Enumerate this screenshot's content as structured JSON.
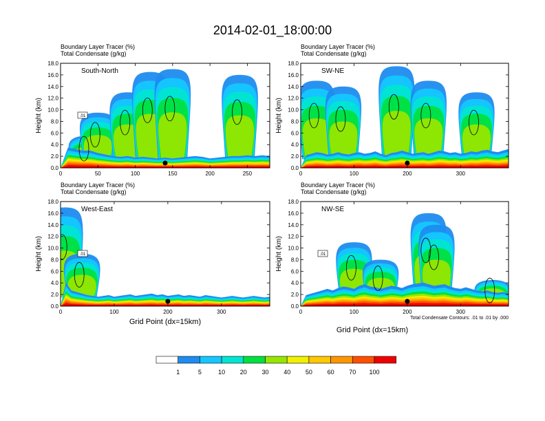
{
  "title": "2014-02-01_18:00:00",
  "field_label_1": "Boundary Layer Tracer   (%)",
  "field_label_2": "Total Condensate   (g/kg)",
  "contour_note": "Total Condensate Contours: .01 to .01 by .000",
  "y_axis_title": "Height (km)",
  "x_axis_title": "Grid Point (dx=15km)",
  "colorbar": {
    "levels": [
      "1",
      "5",
      "10",
      "20",
      "30",
      "40",
      "50",
      "60",
      "70",
      "100"
    ],
    "colors": [
      "#ffffff",
      "#1e8cf0",
      "#14c8ff",
      "#00e6d2",
      "#00e040",
      "#96e600",
      "#f0f000",
      "#ffc800",
      "#ff9600",
      "#ff5000",
      "#f00000"
    ]
  },
  "chart_data": [
    {
      "type": "heatmap",
      "panel": "South-North",
      "panel_label": "South-North",
      "xlim": [
        0,
        280
      ],
      "ylim": [
        0,
        18
      ],
      "xticks": [
        "0",
        "50",
        "100",
        "150",
        "200",
        "250"
      ],
      "xtick_values": [
        0,
        50,
        100,
        150,
        200,
        250
      ],
      "yticks": [
        "0.0",
        "2.0",
        "4.0",
        "6.0",
        "8.0",
        "10.0",
        "12.0",
        "14.0",
        "16.0",
        "18.0"
      ],
      "ytick_values": [
        0,
        2,
        4,
        6,
        8,
        10,
        12,
        14,
        16,
        18
      ],
      "contour_label": ".01",
      "center_marker_x": 140,
      "boundary_layer_top_km": [
        0,
        2.6,
        2.4,
        2.2,
        2.2,
        1.9,
        1.7,
        1.5,
        1.4,
        1.5,
        1.3,
        1.4,
        1.3,
        1.2,
        1.3,
        1.2,
        1.3,
        1.4,
        1.5,
        1.4,
        1.2,
        1.3,
        1.4,
        1.5,
        1.5,
        1.6,
        1.5,
        1.6,
        1.5
      ],
      "plumes": [
        {
          "x": 35,
          "top_km": 5.5
        },
        {
          "x": 50,
          "top_km": 9.5
        },
        {
          "x": 90,
          "top_km": 13.0
        },
        {
          "x": 120,
          "top_km": 16.5
        },
        {
          "x": 150,
          "top_km": 17.0
        },
        {
          "x": 240,
          "top_km": 16.0
        }
      ]
    },
    {
      "type": "heatmap",
      "panel": "SW-NE",
      "panel_label": "SW-NE",
      "xlim": [
        0,
        390
      ],
      "ylim": [
        0,
        18
      ],
      "xticks": [
        "0",
        "100",
        "200",
        "300"
      ],
      "xtick_values": [
        0,
        100,
        200,
        300
      ],
      "yticks": [
        "0.0",
        "2.0",
        "4.0",
        "6.0",
        "8.0",
        "10.0",
        "12.0",
        "14.0",
        "16.0",
        "18.0"
      ],
      "ytick_values": [
        0,
        2,
        4,
        6,
        8,
        10,
        12,
        14,
        16,
        18
      ],
      "contour_label": "",
      "center_marker_x": 200,
      "boundary_layer_top_km": [
        0,
        1.6,
        1.8,
        2.0,
        1.9,
        1.7,
        1.8,
        2.0,
        1.8,
        1.7,
        1.9,
        2.0,
        1.8,
        1.9,
        2.1,
        1.8,
        1.6,
        1.9,
        2.0,
        2.2,
        2.0,
        1.8,
        1.9,
        2.0,
        1.8,
        2.0,
        2.2,
        2.1,
        1.9,
        2.0,
        1.8,
        1.9,
        2.1,
        2.0,
        2.2,
        2.3,
        2.1,
        2.0,
        2.2,
        2.4
      ],
      "plumes": [
        {
          "x": 30,
          "top_km": 15.0
        },
        {
          "x": 80,
          "top_km": 14.0
        },
        {
          "x": 180,
          "top_km": 17.5
        },
        {
          "x": 240,
          "top_km": 15.0
        },
        {
          "x": 330,
          "top_km": 13.0
        }
      ]
    },
    {
      "type": "heatmap",
      "panel": "West-East",
      "panel_label": "West-East",
      "xlim": [
        0,
        390
      ],
      "ylim": [
        0,
        18
      ],
      "xticks": [
        "0",
        "100",
        "200",
        "300"
      ],
      "xtick_values": [
        0,
        100,
        200,
        300
      ],
      "yticks": [
        "0.0",
        "2.0",
        "4.0",
        "6.0",
        "8.0",
        "10.0",
        "12.0",
        "14.0",
        "16.0",
        "18.0"
      ],
      "ytick_values": [
        0,
        2,
        4,
        6,
        8,
        10,
        12,
        14,
        16,
        18
      ],
      "contour_label": ".01",
      "center_marker_x": 200,
      "boundary_layer_top_km": [
        0,
        3.0,
        2.0,
        1.8,
        1.6,
        1.4,
        1.3,
        1.2,
        1.3,
        1.4,
        1.2,
        1.3,
        1.4,
        1.5,
        1.3,
        1.4,
        1.5,
        1.6,
        1.4,
        1.5,
        1.3,
        1.4,
        1.5,
        1.3,
        1.4,
        1.3,
        1.2,
        1.4,
        1.3,
        1.2,
        1.1,
        1.2,
        1.3,
        1.2,
        1.1,
        1.2,
        1.3,
        1.2,
        1.1,
        1.2
      ],
      "plumes": [
        {
          "x": 8,
          "top_km": 17.0
        },
        {
          "x": 40,
          "top_km": 9.0
        }
      ]
    },
    {
      "type": "heatmap",
      "panel": "NW-SE",
      "panel_label": "NW-SE",
      "xlim": [
        0,
        390
      ],
      "ylim": [
        0,
        18
      ],
      "xticks": [
        "0",
        "100",
        "200",
        "300"
      ],
      "xtick_values": [
        0,
        100,
        200,
        300
      ],
      "yticks": [
        "0.0",
        "2.0",
        "4.0",
        "6.0",
        "8.0",
        "10.0",
        "12.0",
        "14.0",
        "16.0",
        "18.0"
      ],
      "ytick_values": [
        0,
        2,
        4,
        6,
        8,
        10,
        12,
        14,
        16,
        18
      ],
      "contour_label": ".01",
      "center_marker_x": 200,
      "boundary_layer_top_km": [
        0,
        1.4,
        1.6,
        1.8,
        2.0,
        2.2,
        2.0,
        2.3,
        2.5,
        2.4,
        2.2,
        2.6,
        2.8,
        2.5,
        2.4,
        2.2,
        2.4,
        2.6,
        2.5,
        2.3,
        2.6,
        2.8,
        2.9,
        3.0,
        2.8,
        2.6,
        2.7,
        2.8,
        2.5,
        2.3,
        2.2,
        2.4,
        2.2,
        2.0,
        1.9,
        2.0,
        1.8,
        1.7,
        1.8,
        1.6
      ],
      "plumes": [
        {
          "x": 100,
          "top_km": 11.0
        },
        {
          "x": 150,
          "top_km": 8.0
        },
        {
          "x": 240,
          "top_km": 16.0
        },
        {
          "x": 255,
          "top_km": 14.0
        },
        {
          "x": 360,
          "top_km": 4.5
        }
      ]
    }
  ]
}
